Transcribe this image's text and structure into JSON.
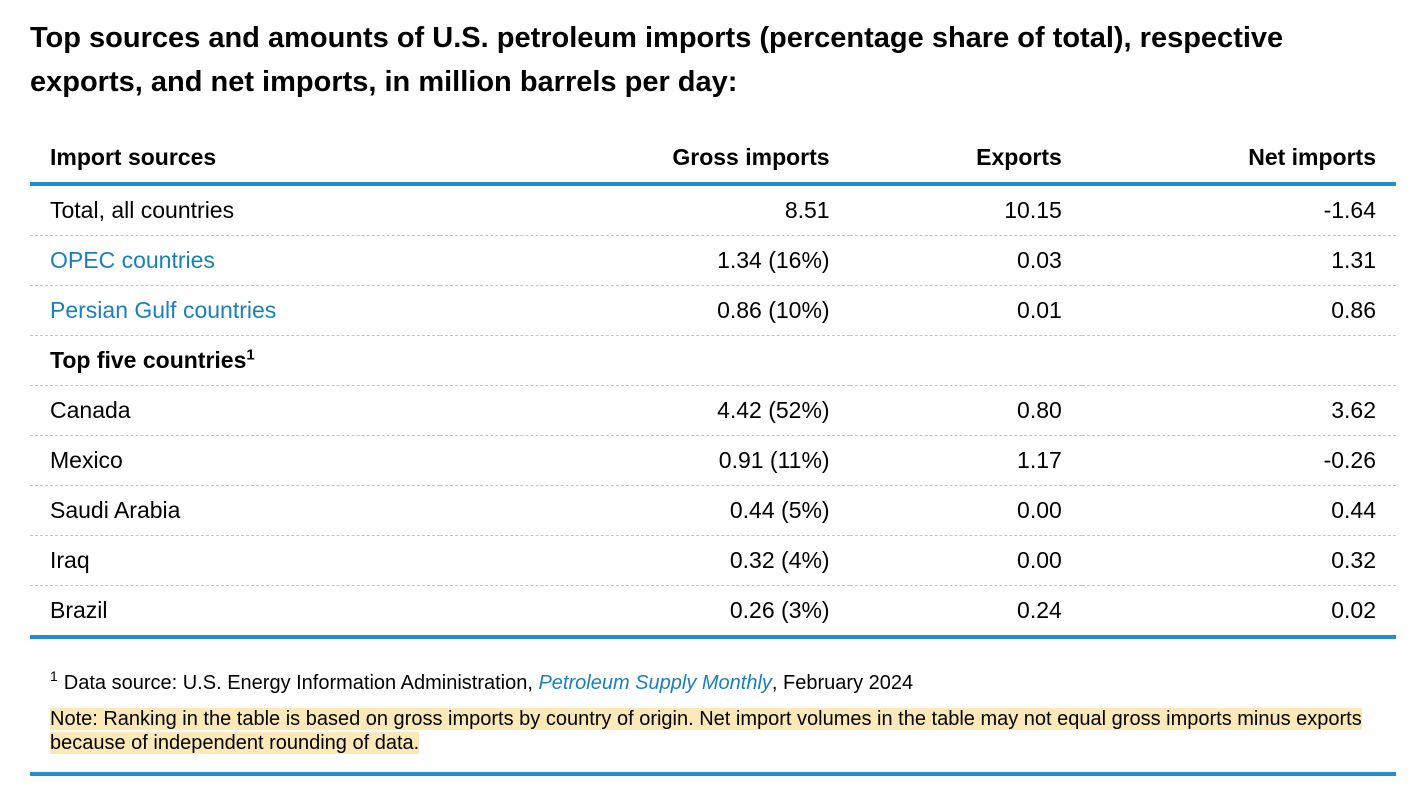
{
  "title": "Top sources and amounts of U.S. petroleum imports (percentage share of total), respective exports, and net imports, in million barrels per day:",
  "colors": {
    "accent_rule": "#1f8dd1",
    "link": "#1a7fbd",
    "note_highlight": "#fde9b8"
  },
  "table": {
    "headers": {
      "source": "Import sources",
      "gross": "Gross imports",
      "exports": "Exports",
      "net": "Net imports"
    },
    "summary_rows": [
      {
        "source": "Total, all countries",
        "gross": "8.51",
        "exports": "10.15",
        "net": "-1.64"
      },
      {
        "source": "OPEC countries",
        "gross": "1.34 (16%)",
        "exports": "0.03",
        "net": "1.31"
      },
      {
        "source": "Persian Gulf countries",
        "gross": "0.86 (10%)",
        "exports": "0.01",
        "net": "0.86"
      }
    ],
    "section_label": "Top five countries",
    "section_footnote_marker": "1",
    "country_rows": [
      {
        "source": "Canada",
        "gross": "4.42 (52%)",
        "exports": "0.80",
        "net": "3.62"
      },
      {
        "source": "Mexico",
        "gross": "0.91 (11%)",
        "exports": "1.17",
        "net": "-0.26"
      },
      {
        "source": "Saudi Arabia",
        "gross": "0.44 (5%)",
        "exports": "0.00",
        "net": "0.44"
      },
      {
        "source": "Iraq",
        "gross": "0.32 (4%)",
        "exports": "0.00",
        "net": "0.32"
      },
      {
        "source": "Brazil",
        "gross": "0.26 (3%)",
        "exports": "0.24",
        "net": "0.02"
      }
    ]
  },
  "footnote": {
    "marker": "1",
    "prefix": "Data source: U.S. Energy Information Administration,",
    "publication": "Petroleum Supply Monthly",
    "suffix": ", February 2024"
  },
  "note": "Note: Ranking in the table is based on gross imports by country of origin. Net import volumes in the table may not equal gross imports minus exports because of independent rounding of data."
}
